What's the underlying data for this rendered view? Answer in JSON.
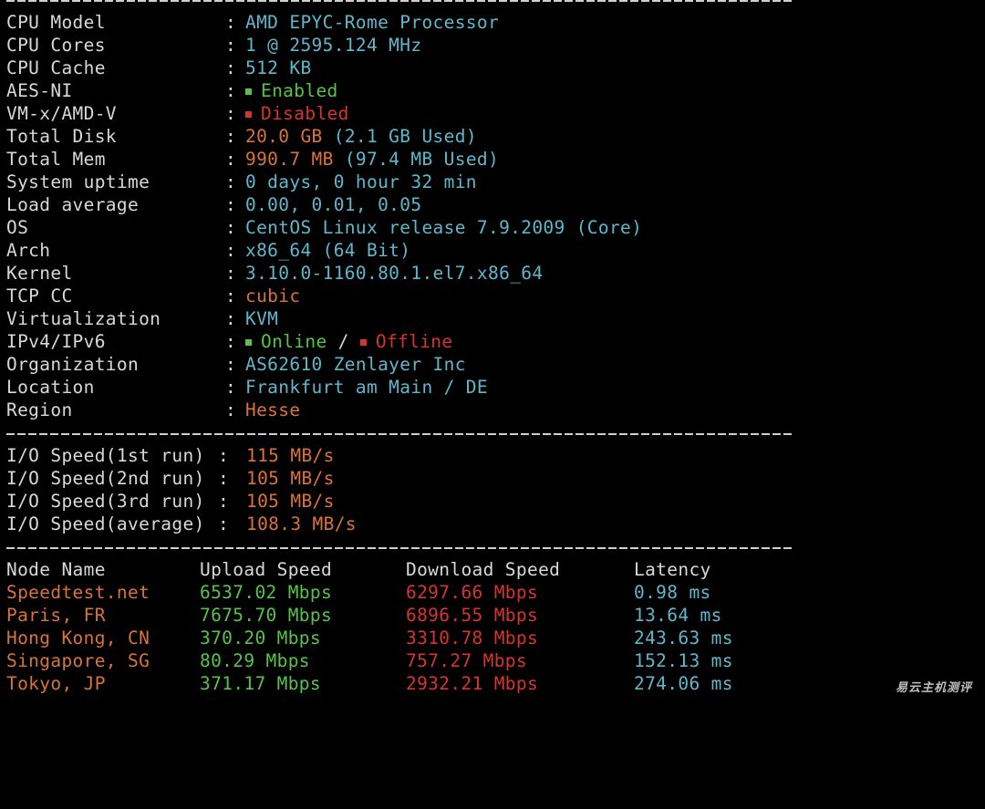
{
  "system": {
    "rows": [
      {
        "key": "CPU Model",
        "value": "AMD EPYC-Rome Processor"
      },
      {
        "key": "CPU Cores",
        "value": "1 @ 2595.124 MHz"
      },
      {
        "key": "CPU Cache",
        "value": "512 KB"
      },
      {
        "key": "AES-NI",
        "value": "Enabled"
      },
      {
        "key": "VM-x/AMD-V",
        "value": "Disabled"
      },
      {
        "key": "Total Disk",
        "value": "20.0 GB",
        "extra": "(2.1 GB Used)"
      },
      {
        "key": "Total Mem",
        "value": "990.7 MB",
        "extra": "(97.4 MB Used)"
      },
      {
        "key": "System uptime",
        "value": "0 days, 0 hour 32 min"
      },
      {
        "key": "Load average",
        "value": "0.00, 0.01, 0.05"
      },
      {
        "key": "OS",
        "value": "CentOS Linux release 7.9.2009 (Core)"
      },
      {
        "key": "Arch",
        "value": "x86_64 (64 Bit)"
      },
      {
        "key": "Kernel",
        "value": "3.10.0-1160.80.1.el7.x86_64"
      },
      {
        "key": "TCP CC",
        "value": "cubic"
      },
      {
        "key": "Virtualization",
        "value": "KVM"
      },
      {
        "key": "IPv4/IPv6",
        "ipv4": "Online",
        "slash": "/",
        "ipv6": "Offline"
      },
      {
        "key": "Organization",
        "value": "AS62610 Zenlayer Inc"
      },
      {
        "key": "Location",
        "value": "Frankfurt am Main / DE"
      },
      {
        "key": "Region",
        "value": "Hesse"
      }
    ],
    "separator": ":"
  },
  "io": {
    "rows": [
      {
        "key": "I/O Speed(1st run)",
        "value": "115 MB/s"
      },
      {
        "key": "I/O Speed(2nd run)",
        "value": "105 MB/s"
      },
      {
        "key": "I/O Speed(3rd run)",
        "value": "105 MB/s"
      },
      {
        "key": "I/O Speed(average)",
        "value": "108.3 MB/s"
      }
    ]
  },
  "speedtest": {
    "headers": [
      "Node Name",
      "Upload Speed",
      "Download Speed",
      "Latency"
    ],
    "rows": [
      {
        "node": "Speedtest.net",
        "upload": "6537.02 Mbps",
        "download": "6297.66 Mbps",
        "latency": "0.98 ms"
      },
      {
        "node": "Paris, FR",
        "upload": "7675.70 Mbps",
        "download": "6896.55 Mbps",
        "latency": "13.64 ms"
      },
      {
        "node": "Hong Kong, CN",
        "upload": "370.20 Mbps",
        "download": "3310.78 Mbps",
        "latency": "243.63 ms"
      },
      {
        "node": "Singapore, SG",
        "upload": "80.29 Mbps",
        "download": "757.27 Mbps",
        "latency": "152.13 ms"
      },
      {
        "node": "Tokyo, JP",
        "upload": "371.17 Mbps",
        "download": "2932.21 Mbps",
        "latency": "274.06 ms"
      }
    ]
  },
  "watermark": "易云主机测评",
  "colors": {
    "background": "#000000",
    "label": "#d8d8d8",
    "cyan": "#5fb7cc",
    "green": "#58c24a",
    "red": "#d5352e",
    "orange": "#d9733a"
  }
}
